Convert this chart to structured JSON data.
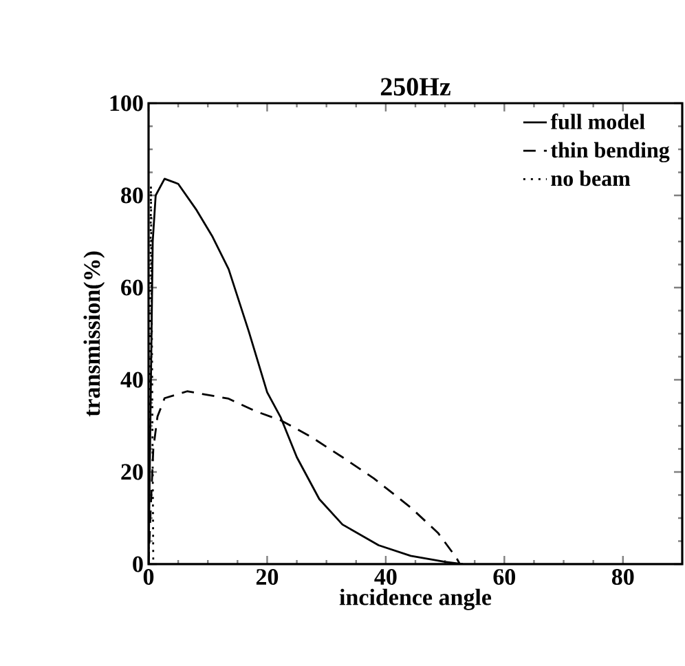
{
  "chart_data": {
    "type": "line",
    "title": "250Hz",
    "xlabel": "incidence angle",
    "ylabel": "transmission(%)",
    "xlim": [
      0,
      90
    ],
    "ylim": [
      0,
      100
    ],
    "xticks": [
      0,
      20,
      40,
      60,
      80
    ],
    "yticks": [
      0,
      20,
      40,
      60,
      80,
      100
    ],
    "legend": "top right",
    "series": [
      {
        "name": "full model",
        "color": "#000000",
        "line_style": "solid",
        "x": [
          0,
          0.3,
          0.7,
          1.2,
          2.7,
          5,
          8.1,
          10.8,
          13.5,
          16.9,
          20,
          22.3,
          25,
          28.8,
          32.7,
          38.8,
          44.2,
          50,
          53
        ],
        "values": [
          0,
          30,
          70,
          80,
          83.6,
          82.5,
          76.8,
          71,
          64,
          50.5,
          37.3,
          31.8,
          23.2,
          14.1,
          8.6,
          4.1,
          1.8,
          0.5,
          0
        ]
      },
      {
        "name": "thin bending",
        "color": "#000000",
        "line_style": "dashed",
        "x": [
          0,
          0.3,
          0.8,
          1.5,
          2.7,
          6.5,
          13.5,
          18,
          22.3,
          27.3,
          32.7,
          38,
          44.2,
          48.8,
          51.9,
          52.5
        ],
        "values": [
          0,
          10,
          25,
          32,
          36,
          37.5,
          35.9,
          33.2,
          31.2,
          27.7,
          23.2,
          18.6,
          12.3,
          6.8,
          1.4,
          0
        ]
      },
      {
        "name": "no beam",
        "color": "#000000",
        "line_style": "dotted",
        "x": [
          0,
          0.4,
          0.8
        ],
        "values": [
          0,
          82,
          0
        ]
      }
    ]
  }
}
